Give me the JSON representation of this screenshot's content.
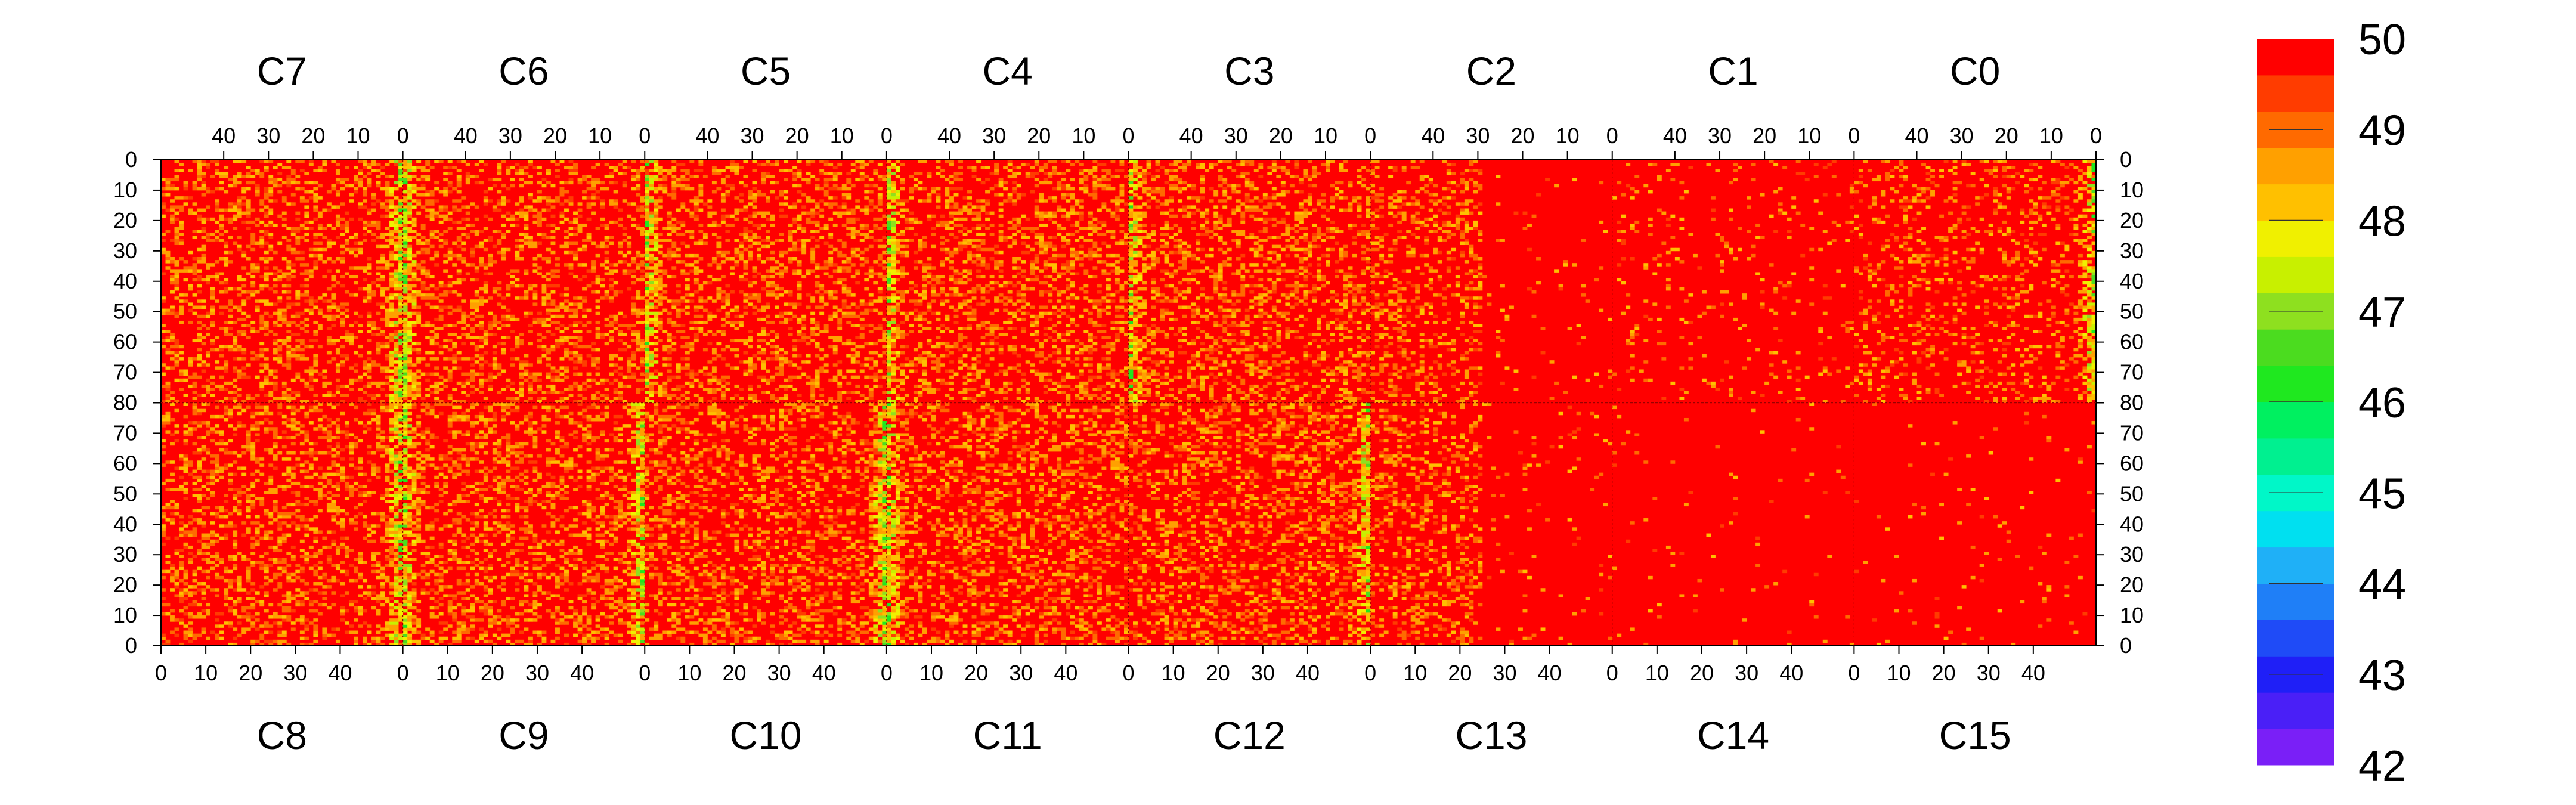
{
  "chart_data": {
    "type": "heatmap",
    "title": "",
    "xlabel": "",
    "ylabel": "",
    "top_row": {
      "chip_labels": [
        "C7",
        "C6",
        "C5",
        "C4",
        "C3",
        "C2",
        "C1",
        "C0"
      ],
      "x_ticks": [
        "40",
        "30",
        "20",
        "10",
        "0"
      ],
      "x_tick_values": [
        40,
        30,
        20,
        10,
        0
      ],
      "x_direction": "descending"
    },
    "bottom_row": {
      "chip_labels": [
        "C8",
        "C9",
        "C10",
        "C11",
        "C12",
        "C13",
        "C14",
        "C15"
      ],
      "x_ticks": [
        "0",
        "10",
        "20",
        "30",
        "40"
      ],
      "x_tick_values": [
        0,
        10,
        20,
        30,
        40
      ],
      "x_direction": "ascending"
    },
    "x_range_per_chip": [
      0,
      53
    ],
    "y_top_ticks": [
      "0",
      "10",
      "20",
      "30",
      "40",
      "50",
      "60",
      "70",
      "80"
    ],
    "y_bottom_ticks": [
      "80",
      "70",
      "60",
      "50",
      "40",
      "30",
      "20",
      "10",
      "0"
    ],
    "y_range_per_row": [
      0,
      80
    ],
    "z_range": [
      42,
      50
    ],
    "colorbar": {
      "ticks": [
        "50",
        "49",
        "48",
        "47",
        "46",
        "45",
        "44",
        "43",
        "42"
      ],
      "levels": [
        "#7a1ff7",
        "#4a1ff7",
        "#1f1ff7",
        "#1f4bf7",
        "#1f7ff7",
        "#1fb0f7",
        "#00e0f0",
        "#00f7c8",
        "#00f090",
        "#00f060",
        "#1fe81f",
        "#4bdc1f",
        "#8ee01f",
        "#c8f000",
        "#f0f000",
        "#ffc000",
        "#ffa000",
        "#ff6a00",
        "#ff3c00",
        "#ff0000"
      ]
    },
    "chips": [
      {
        "name": "C7",
        "position": "top",
        "column_profile": "edge-left-bright",
        "median": 50,
        "hot_edge": "right",
        "noise": "high"
      },
      {
        "name": "C6",
        "position": "top",
        "column_profile": "edge-right-bright",
        "median": 50,
        "hot_edge": "left",
        "noise": "high"
      },
      {
        "name": "C5",
        "position": "top",
        "column_profile": "edge-right-bright",
        "median": 50,
        "hot_edge": "left",
        "noise": "high"
      },
      {
        "name": "C4",
        "position": "top",
        "column_profile": "edge-right-bright",
        "median": 50,
        "hot_edge": "left",
        "noise": "high"
      },
      {
        "name": "C3",
        "position": "top",
        "column_profile": "edge-right-bright",
        "median": 50,
        "hot_edge": "left",
        "noise": "high"
      },
      {
        "name": "C2",
        "position": "top",
        "column_profile": "partial",
        "median": 50,
        "hot_edge": "none",
        "noise": "mixed"
      },
      {
        "name": "C1",
        "position": "top",
        "column_profile": "quiet",
        "median": 50,
        "hot_edge": "none",
        "noise": "low"
      },
      {
        "name": "C0",
        "position": "top",
        "column_profile": "edge-left-bright",
        "median": 50,
        "hot_edge": "right",
        "noise": "medium"
      },
      {
        "name": "C8",
        "position": "bottom",
        "column_profile": "edge-right-bright",
        "median": 50,
        "hot_edge": "right",
        "noise": "high"
      },
      {
        "name": "C9",
        "position": "bottom",
        "column_profile": "edge-left-bright",
        "median": 50,
        "hot_edge": "both",
        "noise": "high"
      },
      {
        "name": "C10",
        "position": "bottom",
        "column_profile": "edge-left-bright",
        "median": 50,
        "hot_edge": "right",
        "noise": "high"
      },
      {
        "name": "C11",
        "position": "bottom",
        "column_profile": "edge-left-bright",
        "median": 50,
        "hot_edge": "left",
        "noise": "high"
      },
      {
        "name": "C12",
        "position": "bottom",
        "column_profile": "edge-left-bright",
        "median": 50,
        "hot_edge": "right",
        "noise": "high"
      },
      {
        "name": "C13",
        "position": "bottom",
        "column_profile": "partial",
        "median": 50,
        "hot_edge": "none",
        "noise": "mixed"
      },
      {
        "name": "C14",
        "position": "bottom",
        "column_profile": "quiet",
        "median": 50,
        "hot_edge": "none",
        "noise": "very-low"
      },
      {
        "name": "C15",
        "position": "bottom",
        "column_profile": "quiet",
        "median": 50,
        "hot_edge": "none",
        "noise": "very-low"
      }
    ]
  }
}
